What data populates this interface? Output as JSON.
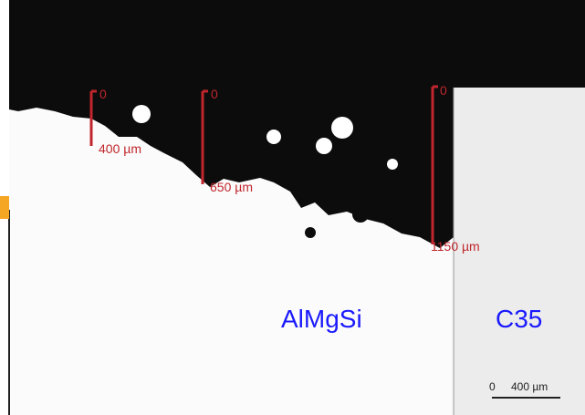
{
  "image": {
    "measurements": [
      {
        "zero": "0",
        "depth": "400 µm"
      },
      {
        "zero": "0",
        "depth": "650 µm"
      },
      {
        "zero": "0",
        "depth": "1150 µm"
      }
    ],
    "materials": [
      "AlMgSi",
      "C35"
    ],
    "scale_bar": {
      "zero": "0",
      "length": "400 µm"
    }
  }
}
